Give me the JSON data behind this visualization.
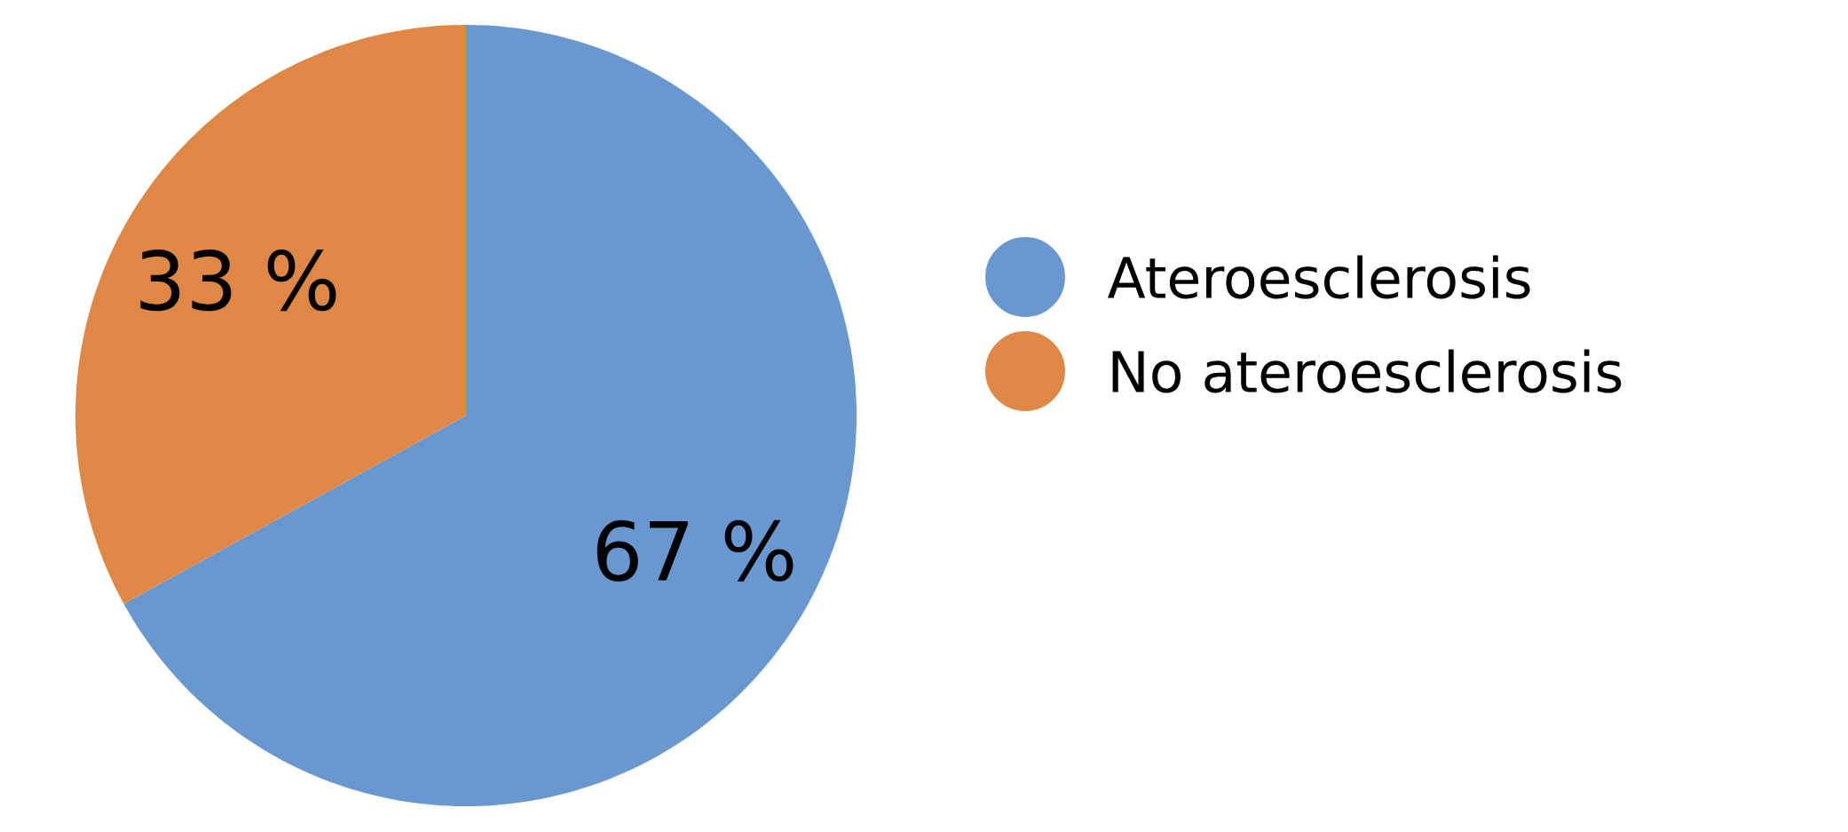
{
  "chart_data": {
    "type": "pie",
    "categories": [
      "Ateroesclerosis",
      "No ateroesclerosis"
    ],
    "values": [
      67,
      33
    ],
    "colors": [
      "#6898cf",
      "#df8744"
    ],
    "value_labels": [
      "67 %",
      "33 %"
    ],
    "legend": "right"
  }
}
